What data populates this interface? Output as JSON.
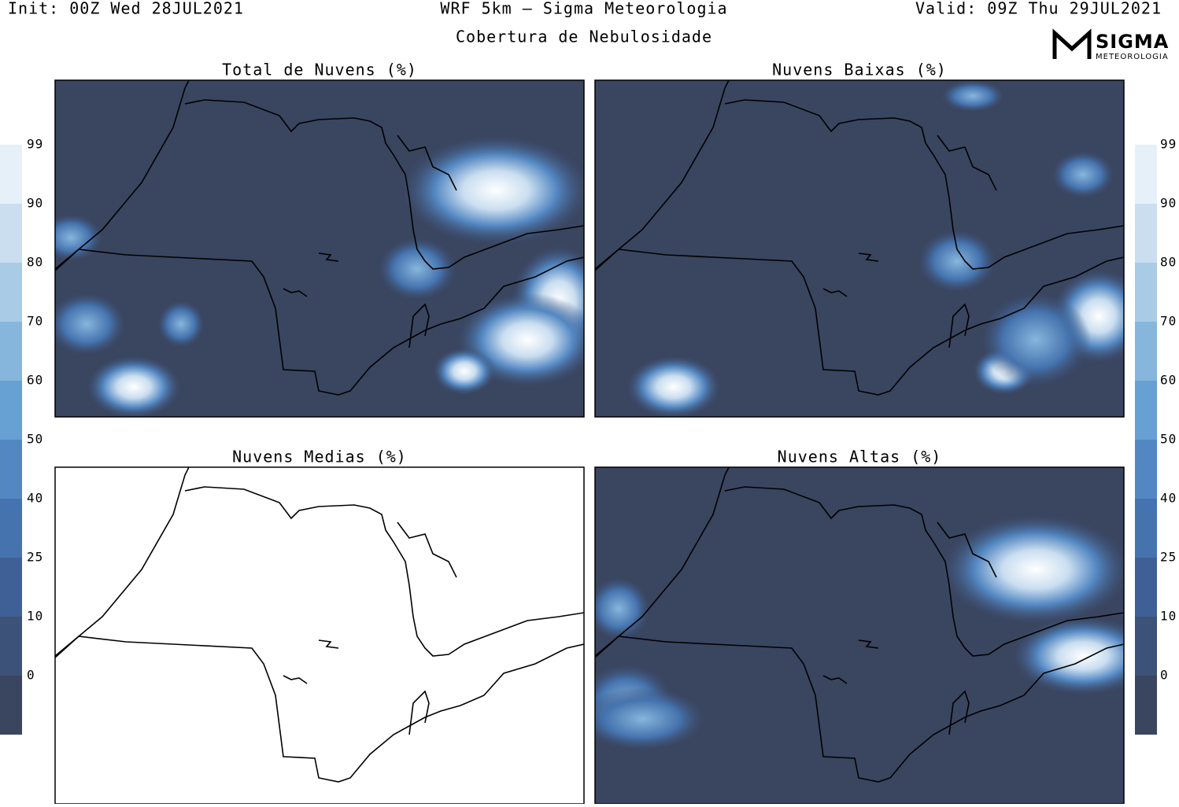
{
  "header": {
    "init": "Init: 00Z Wed 28JUL2021",
    "model": "WRF 5km — Sigma Meteorologia",
    "subtitle": "Cobertura de Nebulosidade",
    "valid": "Valid: 09Z Thu 29JUL2021",
    "logo": "SIGMA",
    "logo_sub": "METEOROLOGIA"
  },
  "panels": [
    {
      "title": "Total de Nuvens (%)"
    },
    {
      "title": "Nuvens Baixas (%)"
    },
    {
      "title": "Nuvens Medias (%)"
    },
    {
      "title": "Nuvens Altas (%)"
    }
  ],
  "colorbar": {
    "labels": [
      0,
      10,
      25,
      40,
      50,
      60,
      70,
      80,
      90,
      99
    ],
    "colors": [
      "#3a4560",
      "#3d5278",
      "#3f6096",
      "#4573ae",
      "#5387c2",
      "#67a0d2",
      "#87b6dd",
      "#a9cbe6",
      "#cadef0",
      "#e6f0f8"
    ]
  }
}
